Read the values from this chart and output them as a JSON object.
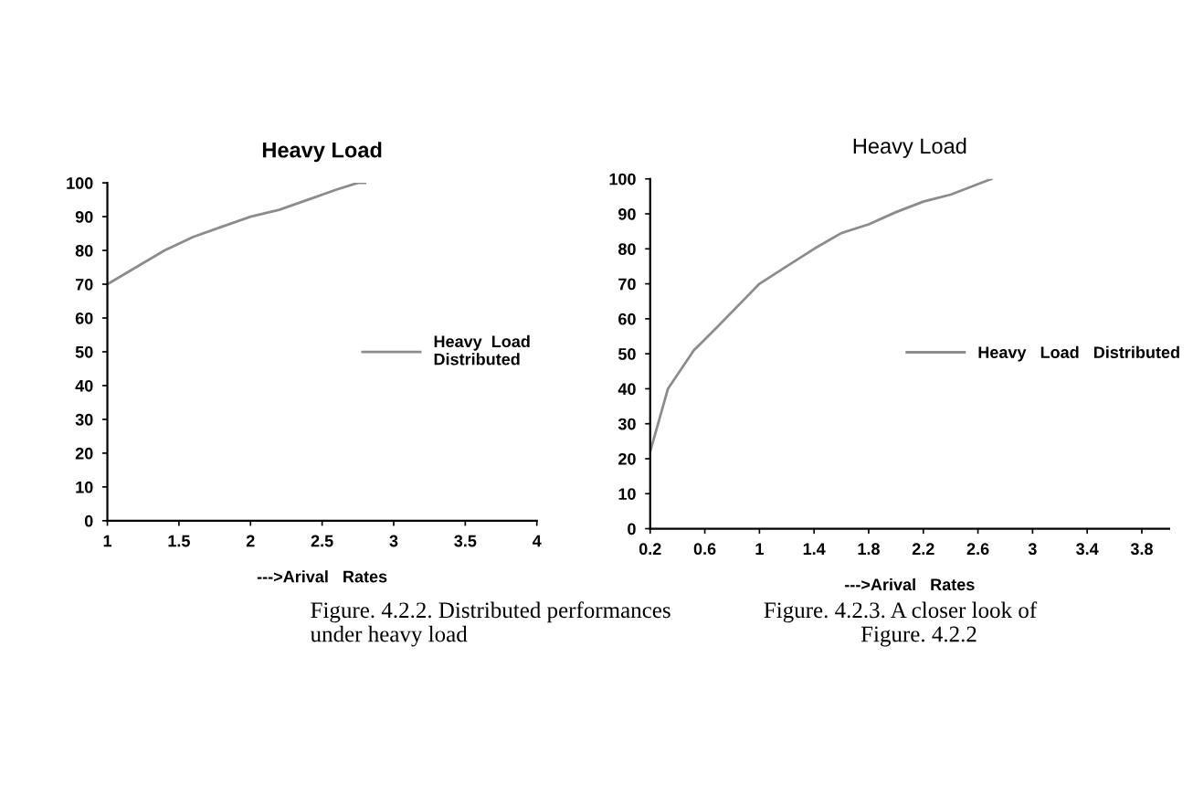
{
  "chart_data": [
    {
      "type": "line",
      "title": "Heavy Load",
      "xlabel": "--->Arival   Rates",
      "xlim": [
        1,
        4
      ],
      "xticks": [
        1,
        1.5,
        2,
        2.5,
        3,
        3.5,
        4
      ],
      "ylim": [
        0,
        100
      ],
      "yticks": [
        0,
        10,
        20,
        30,
        40,
        50,
        60,
        70,
        80,
        90,
        100
      ],
      "grid": false,
      "legend": "right",
      "line_style": "solid",
      "marker": "none",
      "series": [
        {
          "name": "Heavy  Load\nDistributed",
          "color": "#8c8c8c",
          "x": [
            1.0,
            1.2,
            1.4,
            1.6,
            1.8,
            2.0,
            2.2,
            2.4,
            2.6,
            2.75,
            2.8
          ],
          "values": [
            70,
            75,
            80,
            84,
            87,
            90,
            92,
            95,
            98,
            100,
            100
          ]
        }
      ],
      "annotations": [
        "Figure. 4.2.2. Distributed performances\nunder heavy load"
      ]
    },
    {
      "type": "line",
      "title": "Heavy Load",
      "xlabel": "--->Arival   Rates",
      "xlim": [
        0.2,
        4.0
      ],
      "xticks": [
        0.2,
        0.6,
        1,
        1.4,
        1.8,
        2.2,
        2.6,
        3,
        3.4,
        3.8
      ],
      "ylim": [
        0,
        100
      ],
      "yticks": [
        0,
        10,
        20,
        30,
        40,
        50,
        60,
        70,
        80,
        90,
        100
      ],
      "grid": false,
      "legend": "right",
      "line_style": "solid",
      "marker": "none",
      "series": [
        {
          "name": "Heavy   Load   Distributed",
          "color": "#8c8c8c",
          "x": [
            0.2,
            0.33,
            0.52,
            0.7,
            0.9,
            1.0,
            1.2,
            1.4,
            1.6,
            1.8,
            2.0,
            2.2,
            2.4,
            2.6,
            2.7
          ],
          "values": [
            22,
            40,
            51,
            58,
            66,
            70,
            75,
            80,
            84.5,
            87,
            90.5,
            93.5,
            95.5,
            98.5,
            100
          ]
        }
      ],
      "annotations": [
        "Figure. 4.2.3. A closer look of\n                 Figure. 4.2.2"
      ]
    }
  ]
}
